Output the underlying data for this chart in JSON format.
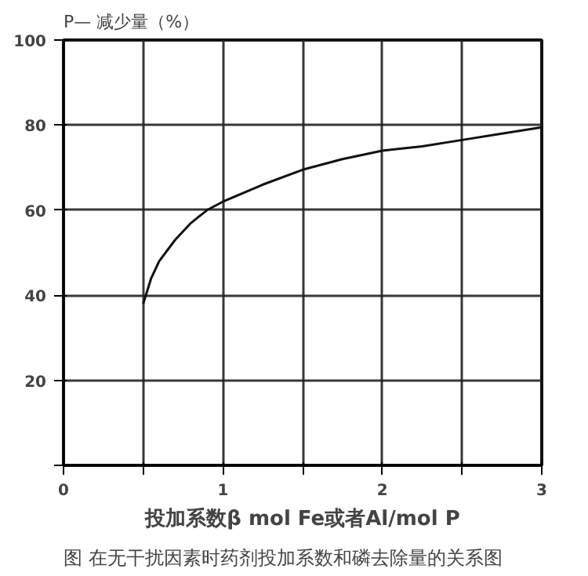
{
  "chart_data": {
    "type": "line",
    "ylabel": "P— 减少量（%）",
    "xlabel": "投加系数β mol Fe或者Al/mol P",
    "annotations": [
      "图 在无干扰因素时药剂投加系数和磷去除量的关系图"
    ],
    "x": [
      0.5,
      0.55,
      0.6,
      0.7,
      0.8,
      0.9,
      1.0,
      1.25,
      1.5,
      1.75,
      2.0,
      2.25,
      2.5,
      2.75,
      3.0
    ],
    "series": [
      {
        "color": "#111111",
        "values": [
          38,
          44,
          48,
          53,
          57,
          60,
          62,
          66,
          69.5,
          72,
          74,
          75,
          76.5,
          78,
          79.5
        ]
      }
    ],
    "xlim": [
      0,
      3
    ],
    "ylim": [
      0,
      100
    ],
    "xticks": [
      0,
      {
        "value": 0.5,
        "label": null
      },
      1,
      {
        "value": 1.5,
        "label": null
      },
      2,
      {
        "value": 2.5,
        "label": null
      },
      3
    ],
    "yticks": [
      {
        "value": 0,
        "label": null
      },
      20,
      40,
      60,
      80,
      100
    ],
    "grid": true,
    "marker": "none",
    "line_style": "solid"
  }
}
